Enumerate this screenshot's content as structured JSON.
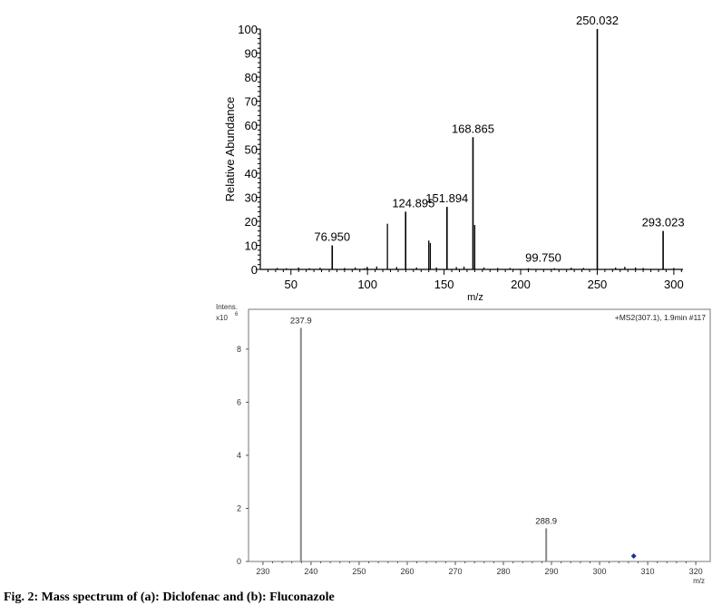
{
  "caption": "Fig. 2: Mass spectrum of (a): Diclofenac and (b): Fluconazole",
  "chart_data": [
    {
      "type": "bar",
      "xlabel": "m/z",
      "ylabel": "Relative Abundance",
      "xlim": [
        30,
        306
      ],
      "ylim": [
        0,
        100
      ],
      "x_ticks": [
        50,
        100,
        150,
        200,
        250,
        300
      ],
      "y_ticks": [
        0,
        10,
        20,
        30,
        40,
        50,
        60,
        70,
        80,
        90,
        100
      ],
      "labeled_peaks": [
        {
          "mz": 76.95,
          "label": "76.950",
          "abundance": 10
        },
        {
          "mz": 124.895,
          "label": "124.895",
          "abundance": 24
        },
        {
          "mz": 151.894,
          "label": "151.894",
          "abundance": 26
        },
        {
          "mz": 168.865,
          "label": "168.865",
          "abundance": 55
        },
        {
          "mz": 99.75,
          "label": "99.750",
          "abundance": 1
        },
        {
          "mz": 250.032,
          "label": "250.032",
          "abundance": 100
        },
        {
          "mz": 293.023,
          "label": "293.023",
          "abundance": 16
        }
      ],
      "other_peaks": [
        {
          "mz": 41,
          "abundance": 0.6
        },
        {
          "mz": 47,
          "abundance": 0.5
        },
        {
          "mz": 55,
          "abundance": 0.8
        },
        {
          "mz": 62,
          "abundance": 0.5
        },
        {
          "mz": 69,
          "abundance": 0.7
        },
        {
          "mz": 85,
          "abundance": 0.6
        },
        {
          "mz": 92,
          "abundance": 0.8
        },
        {
          "mz": 98,
          "abundance": 0.5
        },
        {
          "mz": 106,
          "abundance": 1.2
        },
        {
          "mz": 113,
          "abundance": 19
        },
        {
          "mz": 119,
          "abundance": 1.0
        },
        {
          "mz": 132,
          "abundance": 0.8
        },
        {
          "mz": 140,
          "abundance": 12
        },
        {
          "mz": 141,
          "abundance": 11
        },
        {
          "mz": 145,
          "abundance": 0.8
        },
        {
          "mz": 158,
          "abundance": 1.0
        },
        {
          "mz": 163,
          "abundance": 1.2
        },
        {
          "mz": 170,
          "abundance": 18.5
        },
        {
          "mz": 176,
          "abundance": 0.8
        },
        {
          "mz": 185,
          "abundance": 0.6
        },
        {
          "mz": 193,
          "abundance": 0.6
        },
        {
          "mz": 205,
          "abundance": 0.5
        },
        {
          "mz": 222,
          "abundance": 0.5
        },
        {
          "mz": 233,
          "abundance": 0.7
        },
        {
          "mz": 241,
          "abundance": 0.6
        },
        {
          "mz": 262,
          "abundance": 0.8
        },
        {
          "mz": 268,
          "abundance": 1.1
        },
        {
          "mz": 275,
          "abundance": 0.8
        },
        {
          "mz": 280,
          "abundance": 0.6
        },
        {
          "mz": 300,
          "abundance": 0.6
        }
      ]
    },
    {
      "type": "bar",
      "xlabel": "m/z",
      "ylabel": "Intens.",
      "y_unit": "x10",
      "y_unit_exp": "6",
      "annotation": "+MS2(307.1), 1.9min #117",
      "xlim": [
        227,
        323
      ],
      "ylim": [
        0,
        9.5
      ],
      "x_ticks": [
        230,
        240,
        250,
        260,
        270,
        280,
        290,
        300,
        310,
        320
      ],
      "y_ticks": [
        0,
        2,
        4,
        6,
        8
      ],
      "peaks": [
        {
          "mz": 237.9,
          "label": "237.9",
          "intensity": 8.8
        },
        {
          "mz": 288.9,
          "label": "288.9",
          "intensity": 1.25
        }
      ],
      "precursor_marker": {
        "mz": 307.1,
        "color": "#1a2ea8"
      }
    }
  ]
}
